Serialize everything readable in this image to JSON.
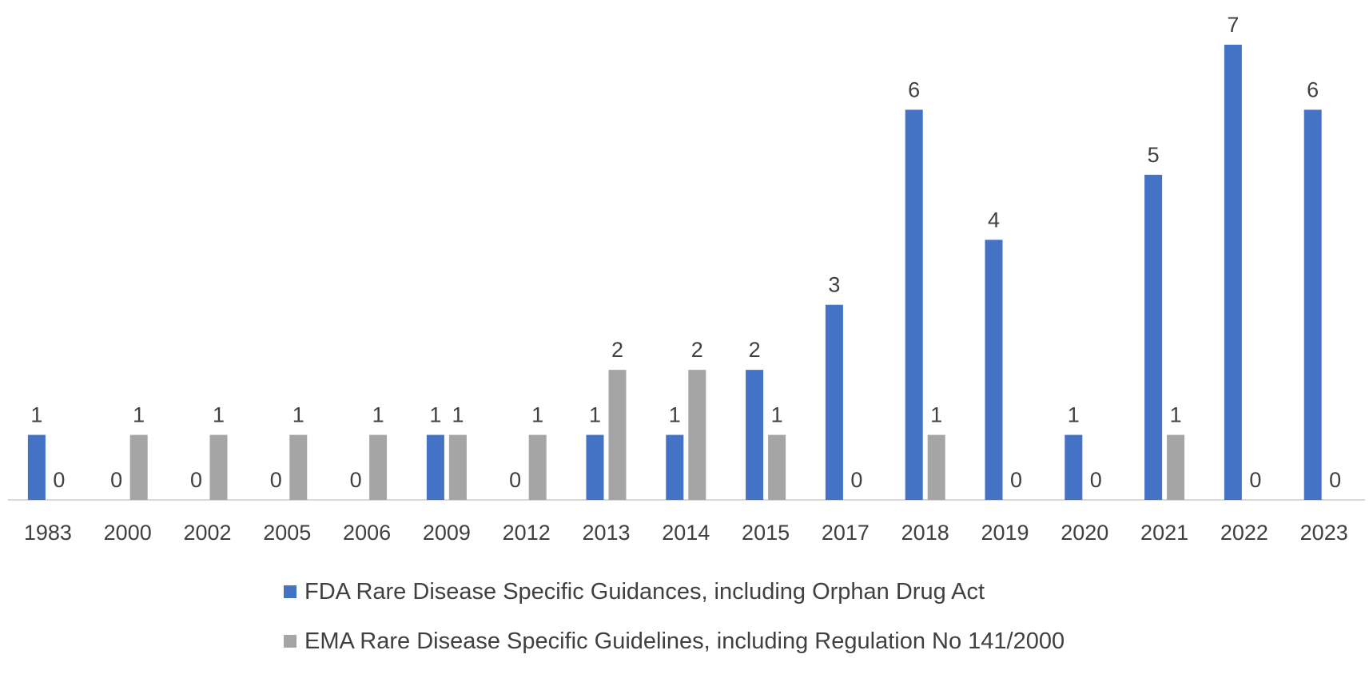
{
  "chart_data": {
    "type": "bar",
    "title": "",
    "xlabel": "",
    "ylabel": "",
    "ylim": [
      0,
      7
    ],
    "grid": false,
    "legend_position": "bottom",
    "categories": [
      "1983",
      "2000",
      "2002",
      "2005",
      "2006",
      "2009",
      "2012",
      "2013",
      "2014",
      "2015",
      "2017",
      "2018",
      "2019",
      "2020",
      "2021",
      "2022",
      "2023"
    ],
    "series": [
      {
        "name": "FDA Rare Disease Specific Guidances, including Orphan Drug Act",
        "color": "#4472C4",
        "values": [
          1,
          0,
          0,
          0,
          0,
          1,
          0,
          1,
          1,
          2,
          3,
          6,
          4,
          1,
          5,
          7,
          6
        ]
      },
      {
        "name": "EMA Rare Disease Specific Guidelines, including Regulation No 141/2000",
        "color": "#A5A5A5",
        "values": [
          0,
          1,
          1,
          1,
          1,
          1,
          1,
          2,
          2,
          1,
          0,
          1,
          0,
          0,
          1,
          0,
          0
        ]
      }
    ]
  }
}
